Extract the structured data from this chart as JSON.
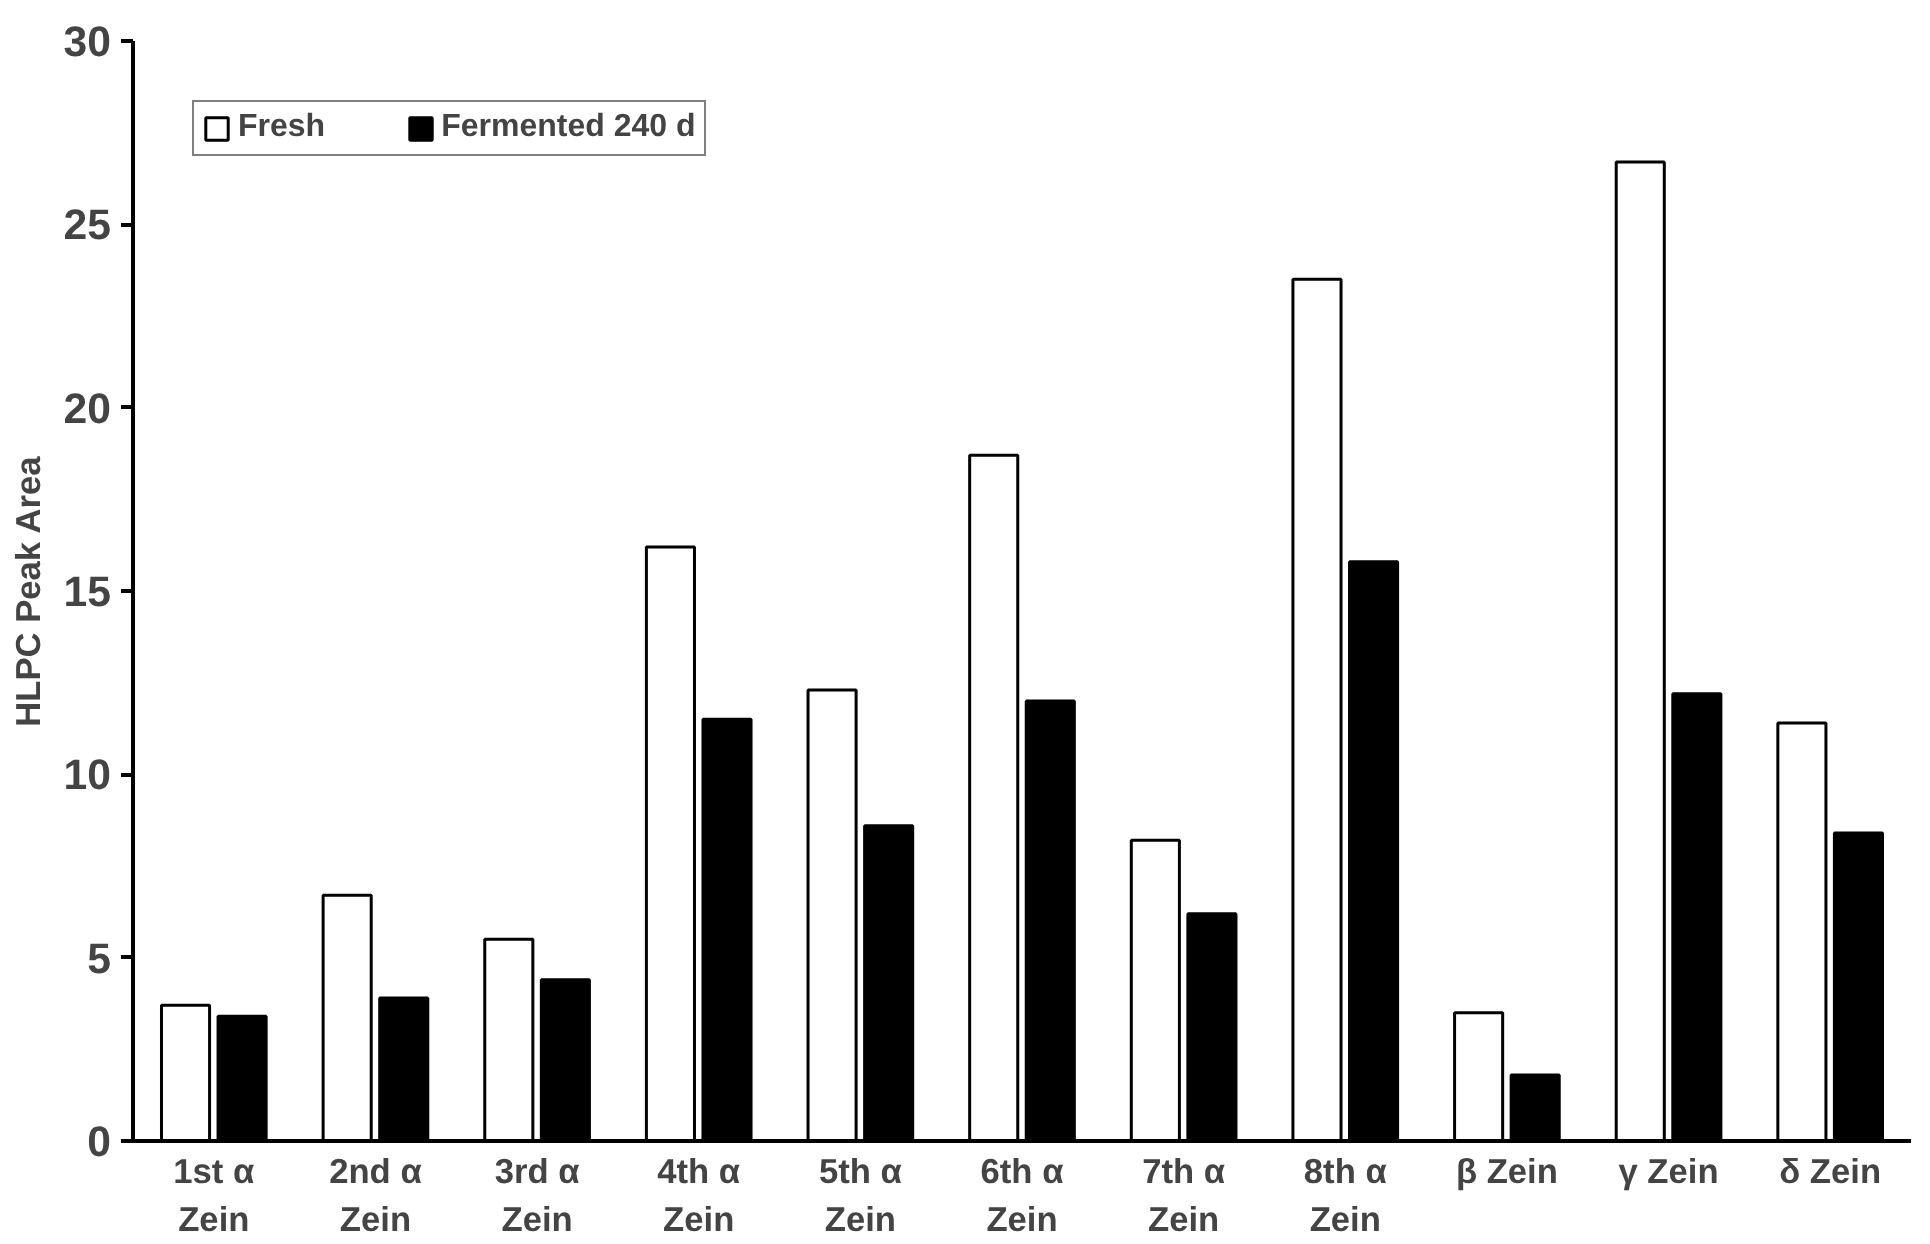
{
  "chart_data": {
    "type": "bar",
    "ylabel": "HLPC Peak Area",
    "categories": [
      "1st α\nZein",
      "2nd α\nZein",
      "3rd α\nZein",
      "4th α\nZein",
      "5th α\nZein",
      "6th α\nZein",
      "7th α\nZein",
      "8th α\nZein",
      "β Zein",
      "γ Zein",
      "δ Zein"
    ],
    "series": [
      {
        "name": "Fresh",
        "color": "#ffffff",
        "values": [
          3.7,
          6.7,
          5.5,
          16.2,
          12.3,
          18.7,
          8.2,
          23.5,
          3.5,
          26.7,
          11.4
        ]
      },
      {
        "name": "Fermented 240 d",
        "color": "#000000",
        "values": [
          3.4,
          3.9,
          4.4,
          11.5,
          8.6,
          12.0,
          6.2,
          15.8,
          1.8,
          12.2,
          8.4
        ]
      }
    ],
    "ylim": [
      0,
      30
    ],
    "yticks": [
      0,
      5,
      10,
      15,
      20,
      25,
      30
    ],
    "grid": false,
    "legend": "top left"
  }
}
